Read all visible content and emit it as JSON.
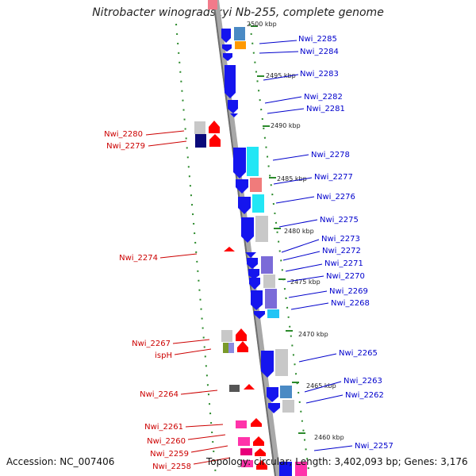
{
  "title": "Nitrobacter winogradskyi Nb-255, complete genome",
  "footer": {
    "accession": "Accession: NC_007406",
    "summary": "Topology: circular; Length: 3,402,093 bp; Genes: 3,176"
  },
  "kbp_labels": [
    {
      "text": "2500 kbp",
      "pos": 2500
    },
    {
      "text": "2495 kbp",
      "pos": 2495
    },
    {
      "text": "2490 kbp",
      "pos": 2490
    },
    {
      "text": "2485 kbp",
      "pos": 2485
    },
    {
      "text": "2480 kbp",
      "pos": 2480
    },
    {
      "text": "2475 kbp",
      "pos": 2475
    },
    {
      "text": "2470 kbp",
      "pos": 2470
    },
    {
      "text": "2465 kbp",
      "pos": 2465
    },
    {
      "text": "2460 kbp",
      "pos": 2460
    }
  ],
  "right_genes": [
    {
      "label": "Nwi_2285"
    },
    {
      "label": "Nwi_2284"
    },
    {
      "label": "Nwi_2283"
    },
    {
      "label": "Nwi_2282"
    },
    {
      "label": "Nwi_2281"
    },
    {
      "label": "Nwi_2278"
    },
    {
      "label": "Nwi_2277"
    },
    {
      "label": "Nwi_2276"
    },
    {
      "label": "Nwi_2275"
    },
    {
      "label": "Nwi_2273"
    },
    {
      "label": "Nwi_2272"
    },
    {
      "label": "Nwi_2271"
    },
    {
      "label": "Nwi_2270"
    },
    {
      "label": "Nwi_2269"
    },
    {
      "label": "Nwi_2268"
    },
    {
      "label": "Nwi_2265"
    },
    {
      "label": "Nwi_2263"
    },
    {
      "label": "Nwi_2262"
    },
    {
      "label": "Nwi_2257"
    }
  ],
  "left_genes": [
    {
      "label": "Nwi_2280"
    },
    {
      "label": "Nwi_2279"
    },
    {
      "label": "Nwi_2274"
    },
    {
      "label": "Nwi_2267"
    },
    {
      "label": "ispH"
    },
    {
      "label": "Nwi_2264"
    },
    {
      "label": "Nwi_2261"
    },
    {
      "label": "Nwi_2260"
    },
    {
      "label": "Nwi_2259"
    },
    {
      "label": "Nwi_2258"
    }
  ],
  "colors": {
    "backbone": "#a8a8a8",
    "forward_cds": "#1515ee",
    "reverse_cds": "#ff0000",
    "right_label": "#0000cc",
    "left_label": "#cc0000",
    "tick": "#2b8a2b"
  }
}
